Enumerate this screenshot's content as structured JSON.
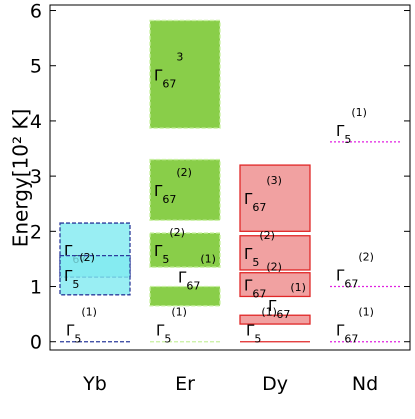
{
  "chart_data": {
    "type": "levels",
    "y_label": "Energy[10² K]",
    "ylim": [
      -0.15,
      6.1
    ],
    "yticks": [
      0,
      1,
      2,
      3,
      4,
      5,
      6
    ],
    "categories": [
      "Yb",
      "Er",
      "Dy",
      "Nd"
    ],
    "colors": [
      "#80eaf0",
      "#6cc21c",
      "#ee8a8a",
      "#e020e0"
    ],
    "border_colors": [
      "#2c3c9c",
      "#c8f0a0",
      "#e02828",
      "#e020e0"
    ],
    "border_styles": [
      "dashed",
      "dashed",
      "solid",
      "dotted"
    ],
    "levels": [
      [
        {
          "label": {
            "base": "Γ",
            "sub": "67",
            "sup": ""
          },
          "low": 1.17,
          "high": 2.15
        },
        {
          "label": {
            "base": "Γ",
            "sub": "5",
            "sup": "(2)"
          },
          "low": 0.85,
          "high": 1.56
        },
        {
          "label": {
            "base": "Γ",
            "sub": "5",
            "sup": "(1)"
          },
          "value": 0
        }
      ],
      [
        {
          "label": {
            "base": "Γ",
            "sub": "67",
            "sup": "3"
          },
          "low": 3.87,
          "high": 5.82
        },
        {
          "label": {
            "base": "Γ",
            "sub": "67",
            "sup": "(2)"
          },
          "low": 2.2,
          "high": 3.3
        },
        {
          "label": {
            "base": "Γ",
            "sub": "5",
            "sup": "(2)"
          },
          "low": 1.35,
          "high": 1.97
        },
        {
          "label": {
            "base": "Γ",
            "sub": "67",
            "sup": "(1)"
          },
          "low": 0.65,
          "high": 1.0
        },
        {
          "label": {
            "base": "Γ",
            "sub": "5",
            "sup": "(1)"
          },
          "value": 0
        }
      ],
      [
        {
          "label": {
            "base": "Γ",
            "sub": "67",
            "sup": "(3)"
          },
          "low": 2.0,
          "high": 3.2
        },
        {
          "label": {
            "base": "Γ",
            "sub": "5",
            "sup": "(2)"
          },
          "low": 1.3,
          "high": 1.92
        },
        {
          "label": {
            "base": "Γ",
            "sub": "67",
            "sup": "(2)"
          },
          "low": 0.82,
          "high": 1.25
        },
        {
          "label": {
            "base": "Γ",
            "sub": "67",
            "sup": "(1)"
          },
          "low": 0.32,
          "high": 0.48
        },
        {
          "label": {
            "base": "Γ",
            "sub": "5",
            "sup": "(1)"
          },
          "value": 0
        }
      ],
      [
        {
          "label": {
            "base": "Γ",
            "sub": "5",
            "sup": "(1)"
          },
          "value": 3.62
        },
        {
          "label": {
            "base": "Γ",
            "sub": "67",
            "sup": "(2)"
          },
          "value": 1.0
        },
        {
          "label": {
            "base": "Γ",
            "sub": "67",
            "sup": "(1)"
          },
          "value": 0
        }
      ]
    ]
  }
}
